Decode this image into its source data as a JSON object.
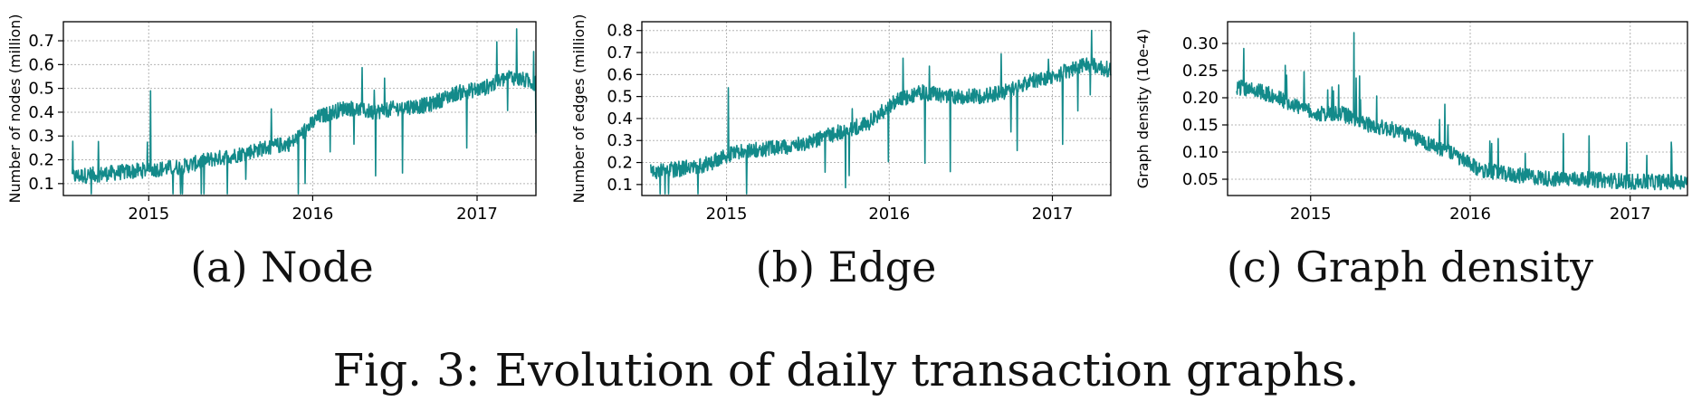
{
  "figure": {
    "caption": "Fig. 3: Evolution of daily transaction graphs.",
    "line_color": "#138a8a",
    "grid": true,
    "x_axis_start_date": "2014-06-25",
    "x_axis_end_date": "2017-05-12"
  },
  "panels": [
    {
      "caption": "(a) Node"
    },
    {
      "caption": "(b) Edge"
    },
    {
      "caption": "(c) Graph density"
    }
  ],
  "chart_data": [
    {
      "type": "line",
      "title": "",
      "xlabel": "",
      "ylabel": "Number of nodes (million)",
      "x_ticks": [
        "2015",
        "2016",
        "2017"
      ],
      "y_ticks": [
        "0.1",
        "0.2",
        "0.3",
        "0.4",
        "0.5",
        "0.6",
        "0.7"
      ],
      "ylim": [
        0.05,
        0.78
      ],
      "xlim": [
        "2014-06-25",
        "2017-05-12"
      ],
      "series": [
        {
          "x": [
            "2014-07",
            "2014-09",
            "2014-11",
            "2015-01",
            "2015-03",
            "2015-05",
            "2015-07",
            "2015-09",
            "2015-11",
            "2016-01",
            "2016-03",
            "2016-05",
            "2016-07",
            "2016-09",
            "2016-11",
            "2017-01",
            "2017-03",
            "2017-05"
          ],
          "values": [
            0.13,
            0.14,
            0.15,
            0.16,
            0.17,
            0.2,
            0.22,
            0.25,
            0.27,
            0.38,
            0.42,
            0.4,
            0.42,
            0.43,
            0.48,
            0.5,
            0.55,
            0.52
          ],
          "spikes": [
            {
              "x": "2015-01-05",
              "value": 0.49
            },
            {
              "x": "2017-03-30",
              "value": 0.75
            }
          ]
        }
      ]
    },
    {
      "type": "line",
      "title": "",
      "xlabel": "",
      "ylabel": "Number of edges (million)",
      "x_ticks": [
        "2015",
        "2016",
        "2017"
      ],
      "y_ticks": [
        "0.1",
        "0.2",
        "0.3",
        "0.4",
        "0.5",
        "0.6",
        "0.7",
        "0.8"
      ],
      "ylim": [
        0.05,
        0.84
      ],
      "xlim": [
        "2014-06-25",
        "2017-05-12"
      ],
      "series": [
        {
          "x": [
            "2014-07",
            "2014-09",
            "2014-11",
            "2015-01",
            "2015-03",
            "2015-05",
            "2015-07",
            "2015-09",
            "2015-11",
            "2016-01",
            "2016-03",
            "2016-05",
            "2016-07",
            "2016-09",
            "2016-11",
            "2017-01",
            "2017-03",
            "2017-05"
          ],
          "values": [
            0.16,
            0.17,
            0.19,
            0.24,
            0.26,
            0.27,
            0.3,
            0.34,
            0.38,
            0.48,
            0.52,
            0.5,
            0.5,
            0.52,
            0.57,
            0.6,
            0.65,
            0.62
          ],
          "spikes": [
            {
              "x": "2015-01-05",
              "value": 0.54
            },
            {
              "x": "2017-03-30",
              "value": 0.8
            }
          ]
        }
      ]
    },
    {
      "type": "line",
      "title": "",
      "xlabel": "",
      "ylabel": "Graph density (10e-4)",
      "x_ticks": [
        "2015",
        "2016",
        "2017"
      ],
      "y_ticks": [
        "0.05",
        "0.10",
        "0.15",
        "0.20",
        "0.25",
        "0.30"
      ],
      "ylim": [
        0.02,
        0.34
      ],
      "xlim": [
        "2014-06-25",
        "2017-05-12"
      ],
      "series": [
        {
          "x": [
            "2014-07",
            "2014-09",
            "2014-11",
            "2015-01",
            "2015-03",
            "2015-05",
            "2015-07",
            "2015-09",
            "2015-11",
            "2016-01",
            "2016-03",
            "2016-05",
            "2016-07",
            "2016-09",
            "2016-11",
            "2017-01",
            "2017-03",
            "2017-05"
          ],
          "values": [
            0.22,
            0.21,
            0.19,
            0.17,
            0.17,
            0.15,
            0.14,
            0.12,
            0.1,
            0.07,
            0.06,
            0.055,
            0.05,
            0.05,
            0.048,
            0.045,
            0.045,
            0.047
          ],
          "spikes": [
            {
              "x": "2014-07-10",
              "value": 0.3
            },
            {
              "x": "2015-04-10",
              "value": 0.32
            }
          ]
        }
      ]
    }
  ]
}
